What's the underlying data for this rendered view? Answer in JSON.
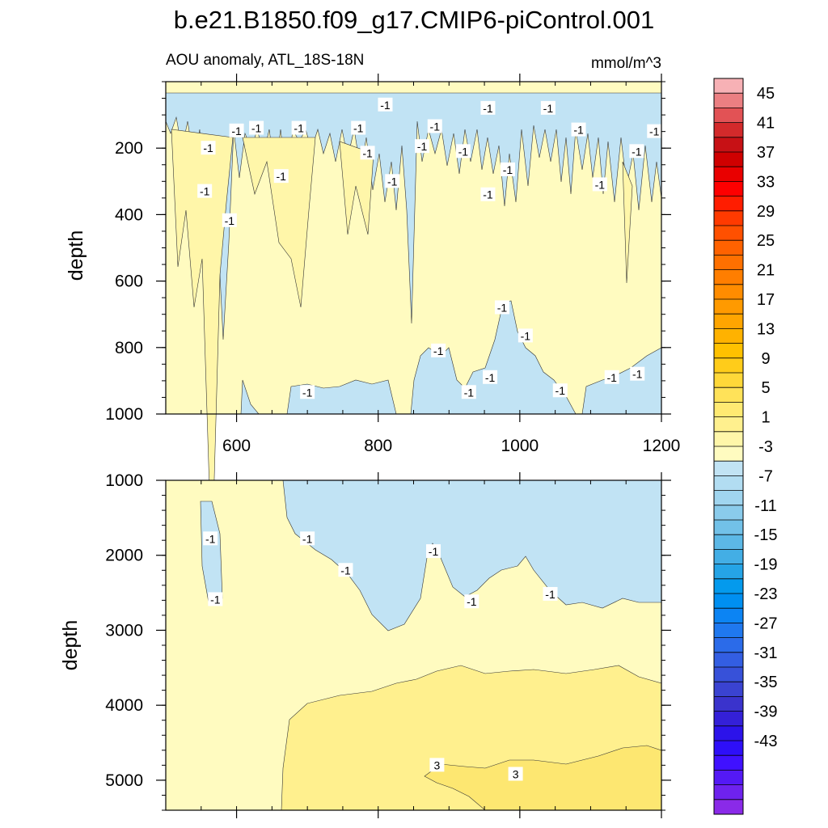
{
  "title": "b.e21.B1850.f09_g17.CMIP6-piControl.001",
  "chart_data": [
    {
      "type": "contour",
      "panel": "upper",
      "subtitle_left": "AOU anomaly, ATL_18S-18N",
      "subtitle_right": "mmol/m^3",
      "ylabel": "depth",
      "xlabel": "",
      "xlim": [
        500,
        1200
      ],
      "ylim": [
        1000,
        0
      ],
      "x_ticks": [
        600,
        800,
        1000,
        1200
      ],
      "x_tick_labels": [
        "600",
        "800",
        "1000",
        "1200"
      ],
      "y_ticks": [
        200,
        400,
        600,
        800,
        1000
      ],
      "y_tick_labels": [
        "200",
        "400",
        "600",
        "800",
        "1000"
      ],
      "contour_labels": [
        {
          "text": "-1",
          "x": 600,
          "y": 148
        },
        {
          "text": "-1",
          "x": 560,
          "y": 200
        },
        {
          "text": "-1",
          "x": 555,
          "y": 330
        },
        {
          "text": "-1",
          "x": 590,
          "y": 418
        },
        {
          "text": "-1",
          "x": 628,
          "y": 140
        },
        {
          "text": "-1",
          "x": 688,
          "y": 140
        },
        {
          "text": "-1",
          "x": 663,
          "y": 285
        },
        {
          "text": "-1",
          "x": 772,
          "y": 140
        },
        {
          "text": "-1",
          "x": 810,
          "y": 70
        },
        {
          "text": "-1",
          "x": 785,
          "y": 215
        },
        {
          "text": "-1",
          "x": 820,
          "y": 300
        },
        {
          "text": "-1",
          "x": 862,
          "y": 195
        },
        {
          "text": "-1",
          "x": 880,
          "y": 135
        },
        {
          "text": "-1",
          "x": 920,
          "y": 210
        },
        {
          "text": "-1",
          "x": 955,
          "y": 80
        },
        {
          "text": "-1",
          "x": 955,
          "y": 340
        },
        {
          "text": "-1",
          "x": 983,
          "y": 265
        },
        {
          "text": "-1",
          "x": 1040,
          "y": 80
        },
        {
          "text": "-1",
          "x": 1083,
          "y": 145
        },
        {
          "text": "-1",
          "x": 1113,
          "y": 310
        },
        {
          "text": "-1",
          "x": 1165,
          "y": 210
        },
        {
          "text": "-1",
          "x": 1190,
          "y": 150
        },
        {
          "text": "-1",
          "x": 975,
          "y": 680
        },
        {
          "text": "-1",
          "x": 1008,
          "y": 765
        },
        {
          "text": "-1",
          "x": 885,
          "y": 810
        },
        {
          "text": "-1",
          "x": 928,
          "y": 935
        },
        {
          "text": "-1",
          "x": 958,
          "y": 890
        },
        {
          "text": "-1",
          "x": 1057,
          "y": 930
        },
        {
          "text": "-1",
          "x": 1130,
          "y": 890
        },
        {
          "text": "-1",
          "x": 1166,
          "y": 880
        },
        {
          "text": "-1",
          "x": 700,
          "y": 935
        }
      ]
    },
    {
      "type": "contour",
      "panel": "lower",
      "ylabel": "depth",
      "xlabel": "",
      "xlim": [
        500,
        1200
      ],
      "ylim": [
        5400,
        1000
      ],
      "x_ticks": [
        600,
        800,
        1000,
        1200
      ],
      "y_ticks": [
        1000,
        2000,
        3000,
        4000,
        5000
      ],
      "y_tick_labels": [
        "1000",
        "2000",
        "3000",
        "4000",
        "5000"
      ],
      "contour_labels": [
        {
          "text": "-1",
          "x": 563,
          "y": 1780
        },
        {
          "text": "-1",
          "x": 570,
          "y": 2590
        },
        {
          "text": "-1",
          "x": 700,
          "y": 1780
        },
        {
          "text": "-1",
          "x": 754,
          "y": 2200
        },
        {
          "text": "-1",
          "x": 878,
          "y": 1950
        },
        {
          "text": "-1",
          "x": 932,
          "y": 2620
        },
        {
          "text": "-1",
          "x": 1043,
          "y": 2520
        },
        {
          "text": "3",
          "x": 883,
          "y": 4800
        },
        {
          "text": "3",
          "x": 994,
          "y": 4920
        }
      ]
    }
  ],
  "colorbar": {
    "labels": [
      "45",
      "41",
      "37",
      "33",
      "29",
      "25",
      "21",
      "17",
      "13",
      "9",
      "5",
      "1",
      "-3",
      "-7",
      "-11",
      "-15",
      "-19",
      "-23",
      "-27",
      "-31",
      "-35",
      "-39",
      "-43"
    ],
    "colors": [
      "#f7b1b5",
      "#eb7f82",
      "#e25255",
      "#d32a2b",
      "#c71115",
      "#cf0000",
      "#e90000",
      "#fe0000",
      "#ff1d00",
      "#ff3a00",
      "#ff5000",
      "#ff6200",
      "#ff7000",
      "#ff7e00",
      "#ff8c00",
      "#ff9a00",
      "#ffa500",
      "#ffb200",
      "#ffc100",
      "#ffcc1a",
      "#ffd839",
      "#ffe259",
      "#ffea72",
      "#fff08e",
      "#fff6a9",
      "#fffbc0",
      "#c1e3f4",
      "#b2ddf2",
      "#a0d5ef",
      "#8acbeb",
      "#72c1e8",
      "#5cb8e6",
      "#43aee5",
      "#25a4e6",
      "#049aed",
      "#008ff1",
      "#0c84f3",
      "#1f78ef",
      "#2b6be9",
      "#335ee2",
      "#3751d9",
      "#3a43d1",
      "#3a33cc",
      "#3420d8",
      "#2c13ea",
      "#2e0ff8",
      "#4011ff",
      "#5419f5",
      "#6e22ee",
      "#8a2ae8"
    ]
  }
}
